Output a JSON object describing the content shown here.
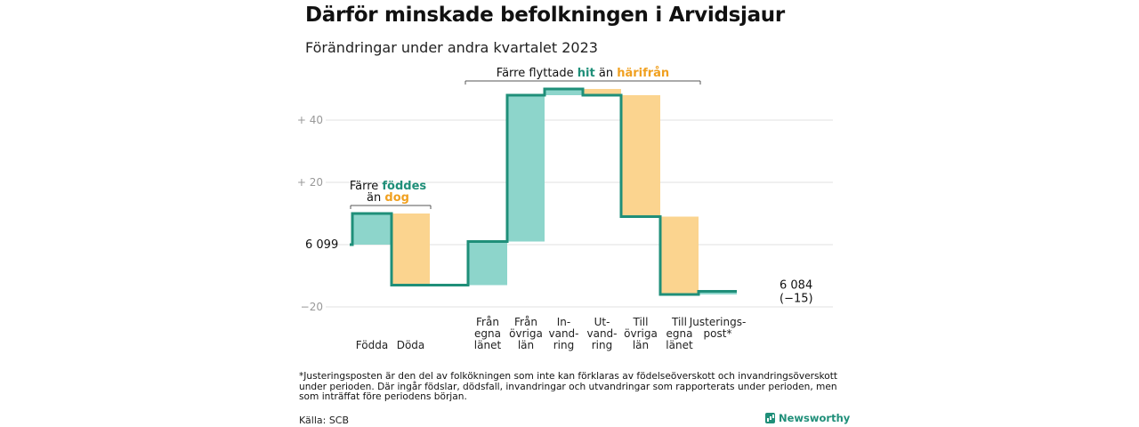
{
  "header": {
    "title": "Därför minskade befolkningen i Arvidsjaur",
    "subtitle": "Förändringar under andra kvartalet 2023"
  },
  "footer": {
    "footnote": "*Justeringsposten är den del av folkökningen som inte kan förklaras av födelseöverskott och invandringsöverskott under perioden. Där ingår födslar, dödsfall, invandringar och utvandringar som rapporterats under perioden, men som inträffat före periodens början.",
    "source": "Källa: SCB",
    "brand": "Newsworthy"
  },
  "colors": {
    "line": "#1f8f79",
    "increase": "#8dd5cb",
    "decrease": "#fbd48f",
    "teal_text": "#1f8f79",
    "orange_text": "#f0a020",
    "grid": "#e2e2e2",
    "tick": "#999999"
  },
  "chart_data": {
    "type": "waterfall",
    "title": "Därför minskade befolkningen i Arvidsjaur",
    "subtitle": "Förändringar under andra kvartalet 2023",
    "start_value": 6099,
    "start_label": "6 099",
    "end_value": 6084,
    "end_label": [
      "6 084",
      "(−15)"
    ],
    "y_axis": {
      "baseline": 6099,
      "range_relative": [
        -20,
        50
      ],
      "ticks": [
        {
          "value": 40,
          "label": "+ 40"
        },
        {
          "value": 20,
          "label": "+ 20"
        },
        {
          "value": -20,
          "label": "−20"
        }
      ]
    },
    "steps": [
      {
        "label": [
          "Födda"
        ],
        "value": 10,
        "kind": "increase"
      },
      {
        "label": [
          "Döda"
        ],
        "value": -23,
        "kind": "decrease"
      },
      {
        "label": [],
        "value": 0,
        "kind": "gap"
      },
      {
        "label": [
          "Från",
          "egna",
          "länet"
        ],
        "value": 14,
        "kind": "increase"
      },
      {
        "label": [
          "Från",
          "övriga",
          "län"
        ],
        "value": 47,
        "kind": "increase"
      },
      {
        "label": [
          "In-",
          "vand-",
          "ring"
        ],
        "value": 2,
        "kind": "increase"
      },
      {
        "label": [
          "Ut-",
          "vand-",
          "ring"
        ],
        "value": -2,
        "kind": "decrease"
      },
      {
        "label": [
          "Till",
          "övriga",
          "län"
        ],
        "value": -39,
        "kind": "decrease"
      },
      {
        "label": [
          "Till",
          "egna",
          "länet"
        ],
        "value": -25,
        "kind": "decrease"
      },
      {
        "label": [
          "Justerings-",
          "post*"
        ],
        "value": 1,
        "kind": "increase"
      }
    ],
    "annotations": [
      {
        "parts": [
          [
            "Färre ",
            "black"
          ],
          [
            "föddes",
            "teal"
          ]
        ],
        "parts2": [
          [
            "än ",
            "black"
          ],
          [
            "dog",
            "orange"
          ]
        ]
      },
      {
        "parts": [
          [
            "Färre flyttade ",
            "black"
          ],
          [
            "hit",
            "teal"
          ],
          [
            " än ",
            "black"
          ],
          [
            "härifrån",
            "orange"
          ]
        ]
      }
    ]
  }
}
